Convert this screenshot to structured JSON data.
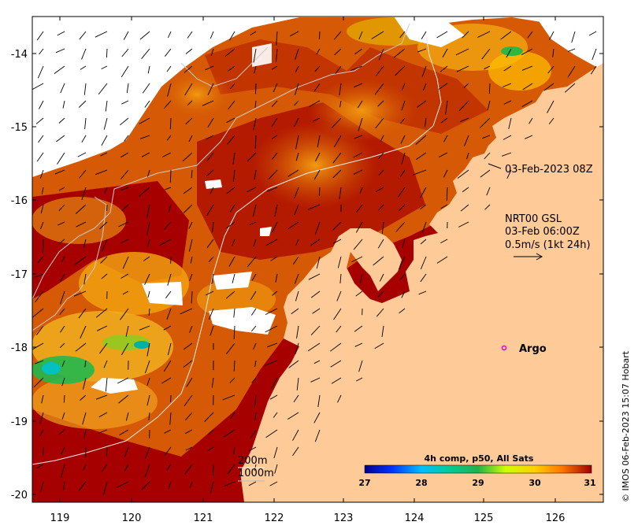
{
  "map": {
    "x_ticks": [
      "119",
      "120",
      "121",
      "122",
      "123",
      "124",
      "125",
      "126"
    ],
    "y_ticks": [
      "-14",
      "-15",
      "-16",
      "-17",
      "-18",
      "-19",
      "-20"
    ],
    "timestamp_label": "03-Feb-2023 08Z",
    "current_model": {
      "title": "NRT00 GSL",
      "time": "03-Feb 06:00Z",
      "scale": "0.5m/s (1kt 24h)"
    },
    "argo_label": "Argo",
    "contours": {
      "label_200m": "200m",
      "label_1000m": "1000m"
    },
    "colorbar": {
      "title": "4h comp, p50, All Sats",
      "ticks": [
        "27",
        "28",
        "29",
        "30",
        "31"
      ]
    },
    "credit": "© IMOS 06-Feb-2023 15:07 Hobart",
    "colors": {
      "land": "#fdca98",
      "sst_hot": "#a60000",
      "sst_warm": "#d65a05",
      "sst_mid": "#ffb000",
      "sst_cool": "#c8d800",
      "sst_cold": "#19b84d",
      "argo": "#e000e0"
    }
  }
}
